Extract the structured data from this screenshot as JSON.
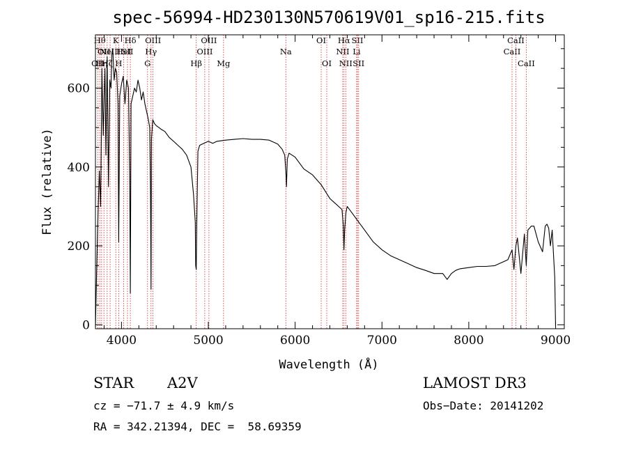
{
  "chart_data": {
    "type": "line",
    "title": "spec-56994-HD230130N570619V01_sp16-215.fits",
    "xlabel": "Wavelength (Å)",
    "ylabel": "Flux (relative)",
    "xlim": [
      3700,
      9100
    ],
    "ylim": [
      -10,
      735
    ],
    "xticks": [
      4000,
      5000,
      6000,
      7000,
      8000,
      9000
    ],
    "yticks": [
      0,
      200,
      400,
      600
    ],
    "grid": false,
    "series": [
      {
        "x": [
          3700,
          3715,
          3730,
          3745,
          3760,
          3775,
          3790,
          3800,
          3810,
          3820,
          3835,
          3850,
          3865,
          3880,
          3890,
          3900,
          3915,
          3930,
          3945,
          3960,
          3968,
          3980,
          4000,
          4020,
          4040,
          4060,
          4080,
          4095,
          4102,
          4110,
          4130,
          4150,
          4170,
          4190,
          4210,
          4230,
          4250,
          4270,
          4290,
          4310,
          4325,
          4335,
          4340,
          4345,
          4360,
          4380,
          4400,
          4430,
          4460,
          4500,
          4550,
          4600,
          4650,
          4700,
          4750,
          4800,
          4830,
          4850,
          4855,
          4861,
          4867,
          4872,
          4880,
          4900,
          4950,
          5000,
          5050,
          5100,
          5200,
          5300,
          5400,
          5500,
          5600,
          5700,
          5800,
          5850,
          5880,
          5895,
          5900,
          5910,
          5930,
          6000,
          6100,
          6200,
          6300,
          6400,
          6450,
          6500,
          6540,
          6555,
          6562,
          6570,
          6585,
          6600,
          6650,
          6700,
          6800,
          6900,
          7000,
          7100,
          7200,
          7300,
          7400,
          7500,
          7600,
          7700,
          7750,
          7800,
          7850,
          7900,
          8000,
          8100,
          8200,
          8300,
          8400,
          8450,
          8498,
          8520,
          8542,
          8560,
          8600,
          8640,
          8662,
          8680,
          8720,
          8750,
          8800,
          8850,
          8880,
          8900,
          8920,
          8940,
          8960,
          8990,
          9000
        ],
        "values": [
          -5,
          150,
          280,
          390,
          300,
          650,
          480,
          580,
          650,
          430,
          680,
          350,
          620,
          600,
          690,
          700,
          620,
          650,
          640,
          560,
          210,
          580,
          610,
          630,
          560,
          620,
          600,
          380,
          80,
          560,
          580,
          600,
          590,
          620,
          600,
          570,
          590,
          560,
          540,
          520,
          500,
          330,
          90,
          470,
          520,
          510,
          505,
          500,
          495,
          490,
          475,
          465,
          455,
          445,
          430,
          400,
          330,
          260,
          150,
          140,
          250,
          330,
          440,
          455,
          460,
          465,
          460,
          465,
          468,
          470,
          472,
          470,
          470,
          468,
          458,
          445,
          430,
          380,
          350,
          420,
          435,
          425,
          395,
          380,
          355,
          320,
          310,
          300,
          292,
          250,
          190,
          240,
          285,
          300,
          285,
          270,
          240,
          210,
          190,
          175,
          165,
          155,
          145,
          138,
          130,
          130,
          115,
          130,
          138,
          142,
          145,
          148,
          148,
          150,
          160,
          165,
          190,
          140,
          200,
          220,
          130,
          230,
          150,
          240,
          250,
          250,
          210,
          185,
          250,
          255,
          245,
          200,
          240,
          120,
          -5
        ]
      }
    ],
    "lines": [
      {
        "wave": 3727,
        "label": "OII",
        "row": 2
      },
      {
        "wave": 3750,
        "label": "Hθ",
        "row": 0
      },
      {
        "wave": 3771,
        "label": "Hη",
        "row": 2
      },
      {
        "wave": 3798,
        "label": "OII",
        "row": 1
      },
      {
        "wave": 3835,
        "label": "Hζ",
        "row": 2
      },
      {
        "wave": 3869,
        "label": "NeIII",
        "row": 1
      },
      {
        "wave": 3934,
        "label": "K",
        "row": 0
      },
      {
        "wave": 3968,
        "label": "H",
        "row": 2
      },
      {
        "wave": 4026,
        "label": "HeI",
        "row": 1
      },
      {
        "wave": 4069,
        "label": "SII",
        "row": 1
      },
      {
        "wave": 4102,
        "label": "Hδ",
        "row": 0
      },
      {
        "wave": 4300,
        "label": "G",
        "row": 2
      },
      {
        "wave": 4340,
        "label": "Hγ",
        "row": 1
      },
      {
        "wave": 4363,
        "label": "OIII",
        "row": 0
      },
      {
        "wave": 4861,
        "label": "Hβ",
        "row": 2
      },
      {
        "wave": 4959,
        "label": "OIII",
        "row": 1
      },
      {
        "wave": 5007,
        "label": "OIII",
        "row": 0
      },
      {
        "wave": 5175,
        "label": "Mg",
        "row": 2
      },
      {
        "wave": 5893,
        "label": "Na",
        "row": 1
      },
      {
        "wave": 6300,
        "label": "OI",
        "row": 0
      },
      {
        "wave": 6364,
        "label": "OI",
        "row": 2
      },
      {
        "wave": 6548,
        "label": "NII",
        "row": 1
      },
      {
        "wave": 6563,
        "label": "Hα",
        "row": 0
      },
      {
        "wave": 6583,
        "label": "NII",
        "row": 2
      },
      {
        "wave": 6708,
        "label": "Li",
        "row": 1
      },
      {
        "wave": 6717,
        "label": "SII",
        "row": 0
      },
      {
        "wave": 6731,
        "label": "SII",
        "row": 2
      },
      {
        "wave": 8498,
        "label": "CaII",
        "row": 1
      },
      {
        "wave": 8542,
        "label": "CaII",
        "row": 0
      },
      {
        "wave": 8662,
        "label": "CaII",
        "row": 2
      }
    ]
  },
  "info": {
    "object_class": "STAR",
    "subclass": "A2V",
    "survey": "LAMOST DR3",
    "cz": "cz = −71.7 ± 4.9 km/s",
    "obs_date": "Obs−Date: 20141202",
    "coords": "RA = 342.21394, DEC =  58.69359"
  }
}
